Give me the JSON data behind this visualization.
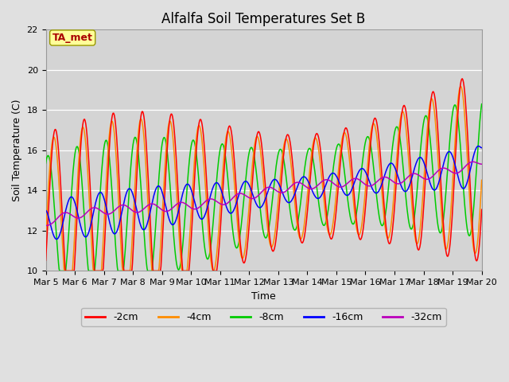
{
  "title": "Alfalfa Soil Temperatures Set B",
  "xlabel": "Time",
  "ylabel": "Soil Temperature (C)",
  "ylim": [
    10,
    22
  ],
  "xlim": [
    0,
    15
  ],
  "x_tick_labels": [
    "Mar 5",
    "Mar 6",
    "Mar 7",
    "Mar 8",
    "Mar 9",
    "Mar 10",
    "Mar 11",
    "Mar 12",
    "Mar 13",
    "Mar 14",
    "Mar 15",
    "Mar 16",
    "Mar 17",
    "Mar 18",
    "Mar 19",
    "Mar 20"
  ],
  "background_color": "#e0e0e0",
  "plot_bg_color": "#d4d4d4",
  "colors": {
    "-2cm": "#ff0000",
    "-4cm": "#ff8c00",
    "-8cm": "#00cc00",
    "-16cm": "#0000ff",
    "-32cm": "#bb00bb"
  },
  "annotation_text": "TA_met",
  "annotation_color": "#aa0000",
  "annotation_bg": "#ffff99",
  "title_fontsize": 12,
  "axis_label_fontsize": 9,
  "tick_fontsize": 8
}
